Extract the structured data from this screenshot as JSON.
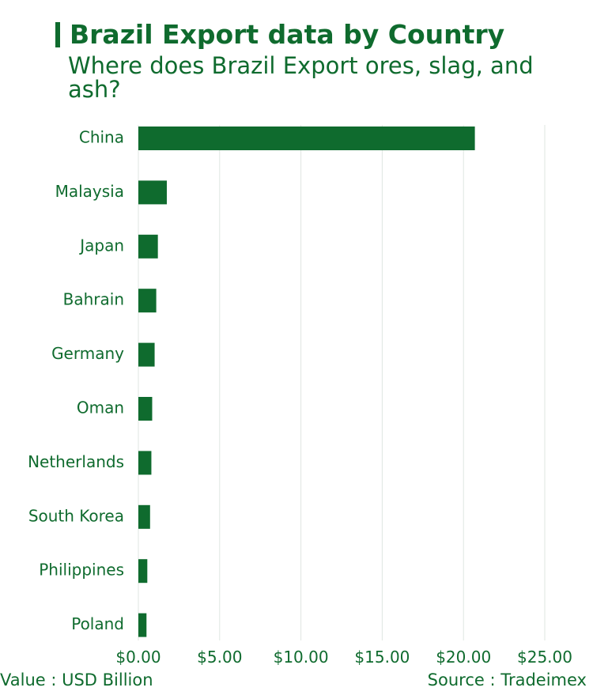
{
  "header": {
    "title": "Brazil Export data by Country",
    "subtitle": "Where does Brazil Export ores, slag, and ash?"
  },
  "footer": {
    "value_note": "Value : USD Billion",
    "source_note": "Source : Tradeimex"
  },
  "colors": {
    "bar": "#0f6b2e",
    "text": "#0f6b2e",
    "grid": "#dfe6e1"
  },
  "chart_data": {
    "type": "bar",
    "orientation": "horizontal",
    "categories": [
      "China",
      "Malaysia",
      "Japan",
      "Bahrain",
      "Germany",
      "Oman",
      "Netherlands",
      "South Korea",
      "Philippines",
      "Poland"
    ],
    "values": [
      20.7,
      1.75,
      1.2,
      1.1,
      1.0,
      0.85,
      0.8,
      0.72,
      0.55,
      0.5
    ],
    "xlim": [
      0,
      25
    ],
    "x_ticks": [
      "$0.00",
      "$5.00",
      "$10.00",
      "$15.00",
      "$20.00",
      "$25.00"
    ],
    "grid": true
  }
}
